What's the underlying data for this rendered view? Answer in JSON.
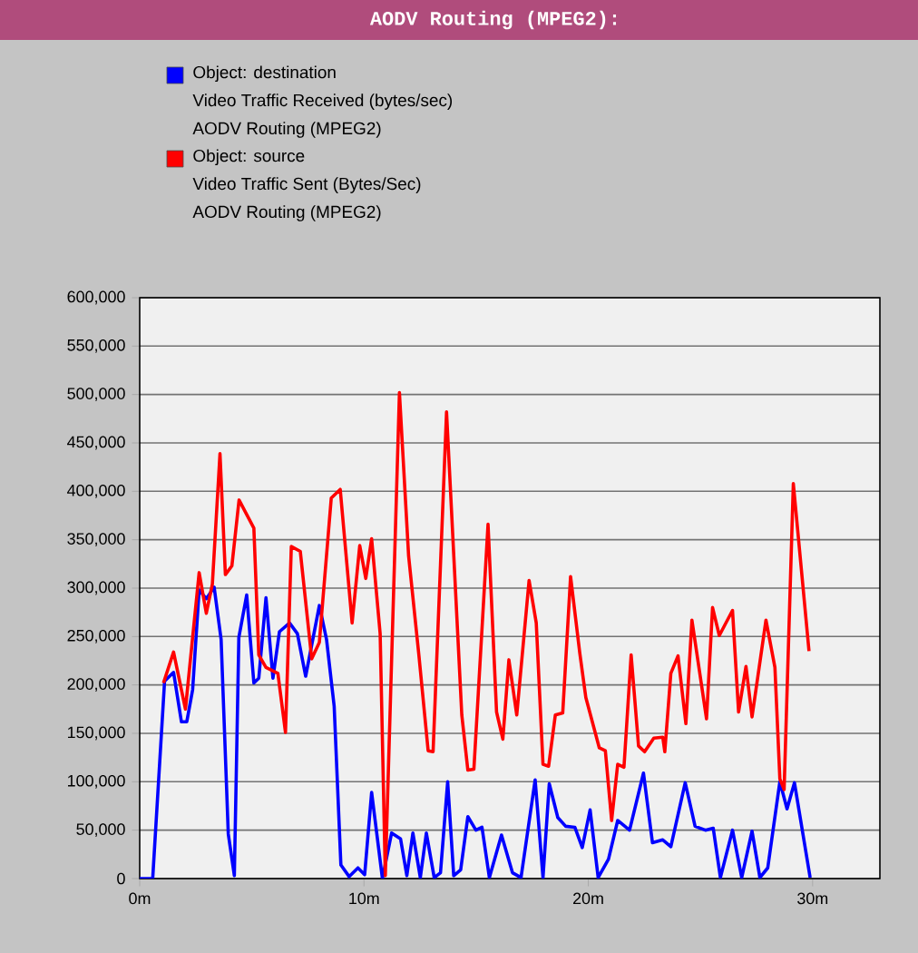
{
  "chart_data": {
    "type": "line",
    "title": "AODV Routing (MPEG2):",
    "xlim": [
      0,
      33
    ],
    "ylim": [
      0,
      600000
    ],
    "xticks": [
      {
        "value": 0,
        "label": "0m"
      },
      {
        "value": 10,
        "label": "10m"
      },
      {
        "value": 20,
        "label": "20m"
      },
      {
        "value": 30,
        "label": "30m"
      }
    ],
    "yticks": [
      {
        "value": 0,
        "label": "0"
      },
      {
        "value": 50000,
        "label": "50,000"
      },
      {
        "value": 100000,
        "label": "100,000"
      },
      {
        "value": 150000,
        "label": "150,000"
      },
      {
        "value": 200000,
        "label": "200,000"
      },
      {
        "value": 250000,
        "label": "250,000"
      },
      {
        "value": 300000,
        "label": "300,000"
      },
      {
        "value": 350000,
        "label": "350,000"
      },
      {
        "value": 400000,
        "label": "400,000"
      },
      {
        "value": 450000,
        "label": "450,000"
      },
      {
        "value": 500000,
        "label": "500,000"
      },
      {
        "value": 550000,
        "label": "550,000"
      },
      {
        "value": 600000,
        "label": "600,000"
      }
    ],
    "grid": "y",
    "legend": "top left",
    "marker": "none",
    "line_style": "solid",
    "series": [
      {
        "name": "Object: destination\nVideo Traffic Received (bytes/sec)\nAODV Routing (MPEG2)",
        "color": "#0000ff",
        "x": [
          0,
          0.58,
          1.11,
          1.51,
          1.86,
          2.1,
          2.36,
          2.65,
          2.97,
          3.32,
          3.63,
          3.95,
          4.22,
          4.42,
          4.77,
          5.09,
          5.31,
          5.63,
          5.94,
          6.23,
          6.68,
          7.03,
          7.4,
          8.01,
          8.33,
          8.67,
          8.97,
          9.34,
          9.73,
          10.03,
          10.34,
          10.82,
          11.23,
          11.63,
          11.91,
          12.18,
          12.51,
          12.78,
          13.13,
          13.41,
          13.73,
          14.0,
          14.31,
          14.63,
          14.99,
          15.26,
          15.59,
          16.13,
          16.62,
          17.0,
          17.63,
          17.98,
          18.26,
          18.64,
          18.99,
          19.4,
          19.73,
          20.08,
          20.44,
          20.9,
          21.31,
          21.84,
          22.46,
          22.86,
          23.32,
          23.68,
          24.32,
          24.76,
          25.22,
          25.57,
          25.89,
          26.43,
          26.84,
          27.3,
          27.65,
          28.0,
          28.54,
          28.86,
          29.19,
          29.89
        ],
        "values": [
          0,
          0,
          204000,
          213000,
          162000,
          162000,
          195000,
          298000,
          289000,
          301000,
          247000,
          46000,
          3000,
          249000,
          293000,
          202000,
          207000,
          290000,
          207000,
          255000,
          264000,
          253000,
          209000,
          282000,
          247000,
          178000,
          14000,
          2000,
          11000,
          4000,
          89000,
          0,
          47000,
          41000,
          3000,
          47000,
          1000,
          47000,
          1000,
          6000,
          100000,
          3000,
          9000,
          64000,
          50000,
          53000,
          1000,
          45000,
          6000,
          1000,
          102000,
          1000,
          98000,
          63000,
          54000,
          53000,
          32000,
          71000,
          1000,
          20000,
          60000,
          50000,
          109000,
          37000,
          40000,
          33000,
          99000,
          54000,
          50000,
          52000,
          1000,
          50000,
          1000,
          49000,
          1000,
          11000,
          100000,
          72000,
          99000,
          1000
        ]
      },
      {
        "name": "Object: source\nVideo Traffic Sent (Bytes/Sec)\nAODV Routing (MPEG2)",
        "color": "#ff0000",
        "x": [
          1.06,
          1.51,
          2.04,
          2.65,
          2.97,
          3.24,
          3.58,
          3.82,
          4.11,
          4.43,
          5.09,
          5.31,
          5.63,
          6.16,
          6.5,
          6.76,
          7.16,
          7.67,
          8.01,
          8.54,
          8.94,
          9.47,
          9.81,
          10.08,
          10.34,
          10.72,
          10.95,
          11.58,
          11.99,
          12.45,
          12.86,
          13.08,
          13.68,
          14.36,
          14.63,
          14.9,
          15.53,
          15.91,
          16.19,
          16.46,
          16.81,
          17.36,
          17.68,
          17.98,
          18.23,
          18.53,
          18.86,
          19.21,
          19.62,
          19.89,
          20.49,
          20.76,
          21.04,
          21.31,
          21.59,
          21.91,
          22.24,
          22.51,
          22.92,
          23.32,
          23.41,
          23.68,
          24.0,
          24.35,
          24.62,
          25.27,
          25.54,
          25.84,
          26.43,
          26.7,
          27.03,
          27.3,
          27.92,
          28.32,
          28.54,
          28.73,
          29.14,
          29.84
        ],
        "values": [
          202000,
          234000,
          175000,
          316000,
          274000,
          304000,
          439000,
          314000,
          323000,
          391000,
          362000,
          231000,
          218000,
          212000,
          151000,
          343000,
          338000,
          227000,
          244000,
          393000,
          402000,
          264000,
          344000,
          310000,
          351000,
          253000,
          3000,
          502000,
          333000,
          230000,
          132000,
          131000,
          482000,
          169000,
          112000,
          113000,
          366000,
          172000,
          144000,
          226000,
          169000,
          308000,
          264000,
          118000,
          116000,
          169000,
          171000,
          312000,
          233000,
          187000,
          135000,
          132000,
          60000,
          118000,
          115000,
          231000,
          137000,
          131000,
          145000,
          146000,
          131000,
          212000,
          230000,
          160000,
          267000,
          165000,
          280000,
          251000,
          277000,
          172000,
          219000,
          167000,
          267000,
          218000,
          103000,
          92000,
          408000,
          235000
        ]
      }
    ]
  }
}
